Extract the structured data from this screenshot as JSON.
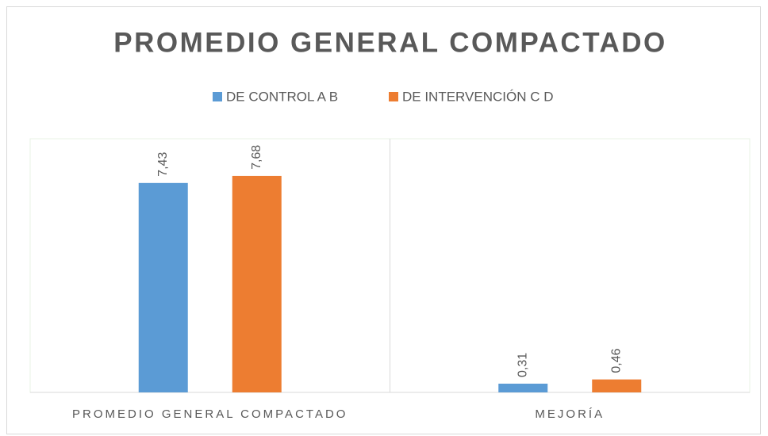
{
  "chart_data": {
    "type": "bar",
    "title": "PROMEDIO GENERAL COMPACTADO",
    "categories": [
      "PROMEDIO GENERAL COMPACTADO",
      "MEJORÍA"
    ],
    "series": [
      {
        "name": "DE CONTROL A B",
        "color": "#5b9bd5",
        "values": [
          7.43,
          0.31
        ],
        "value_labels": [
          "7,43",
          "0,31"
        ]
      },
      {
        "name": "DE INTERVENCIÓN C D",
        "color": "#ed7d31",
        "values": [
          7.68,
          0.46
        ],
        "value_labels": [
          "7,68",
          "0,46"
        ]
      }
    ],
    "ylim": [
      0,
      9
    ],
    "legend": "top"
  }
}
